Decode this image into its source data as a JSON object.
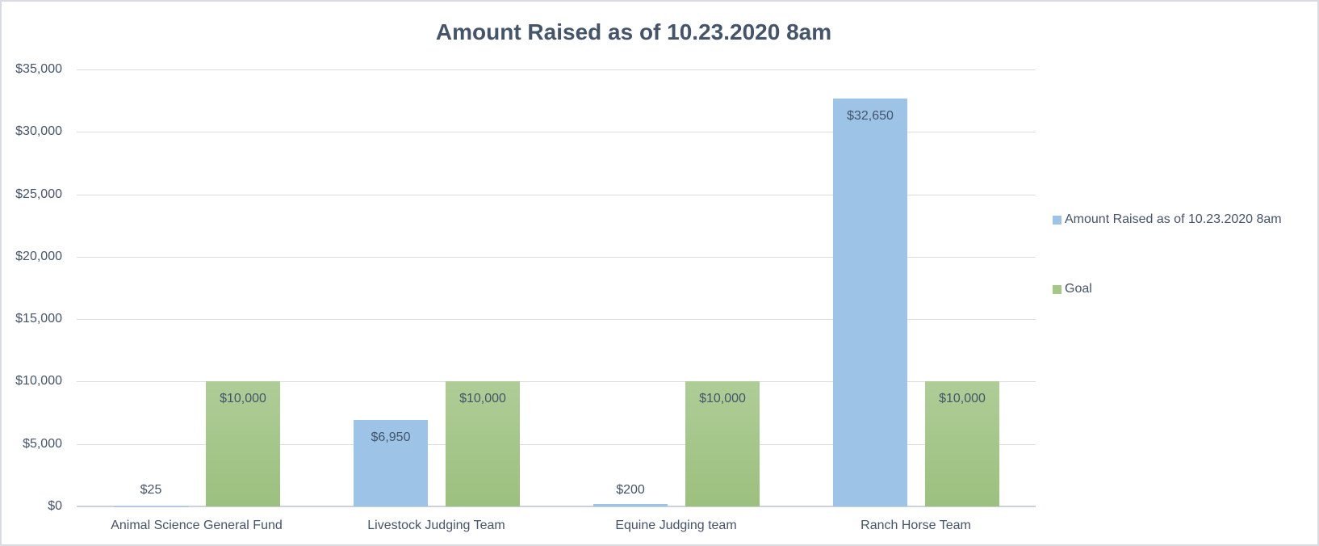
{
  "title": "Amount Raised as of 10.23.2020 8am",
  "colors": {
    "raised_bar": "#9DC3E6",
    "goal_bar": "#A5C884",
    "text": "#44546A",
    "gridline": "#DBDFE5",
    "axis_line": "#CCD2D9",
    "frame_border": "#D8DCE2"
  },
  "chart_data": {
    "type": "bar",
    "title": "Amount Raised as of 10.23.2020 8am",
    "categories": [
      "Animal Science General Fund",
      "Livestock Judging Team",
      "Equine Judging team",
      "Ranch Horse Team"
    ],
    "series": [
      {
        "name": "Amount Raised as of 10.23.2020 8am",
        "color": "#9DC3E6",
        "values": [
          25,
          6950,
          200,
          32650
        ],
        "data_labels": [
          "$25",
          "$6,950",
          "$200",
          "$32,650"
        ]
      },
      {
        "name": "Goal",
        "color": "#A5C884",
        "values": [
          10000,
          10000,
          10000,
          10000
        ],
        "data_labels": [
          "$10,000",
          "$10,000",
          "$10,000",
          "$10,000"
        ]
      }
    ],
    "ylabel": "",
    "xlabel": "",
    "ylim": [
      0,
      35000
    ],
    "ytick_step": 5000,
    "ytick_labels": [
      "$35,000",
      "$30,000",
      "$25,000",
      "$20,000",
      "$15,000",
      "$10,000",
      "$5,000",
      "$0"
    ],
    "grid": true,
    "legend_position": "right"
  },
  "legend": {
    "entries": [
      {
        "label": "Amount Raised as of 10.23.2020 8am",
        "color": "#9DC3E6"
      },
      {
        "label": "Goal",
        "color": "#A5C884"
      }
    ]
  }
}
